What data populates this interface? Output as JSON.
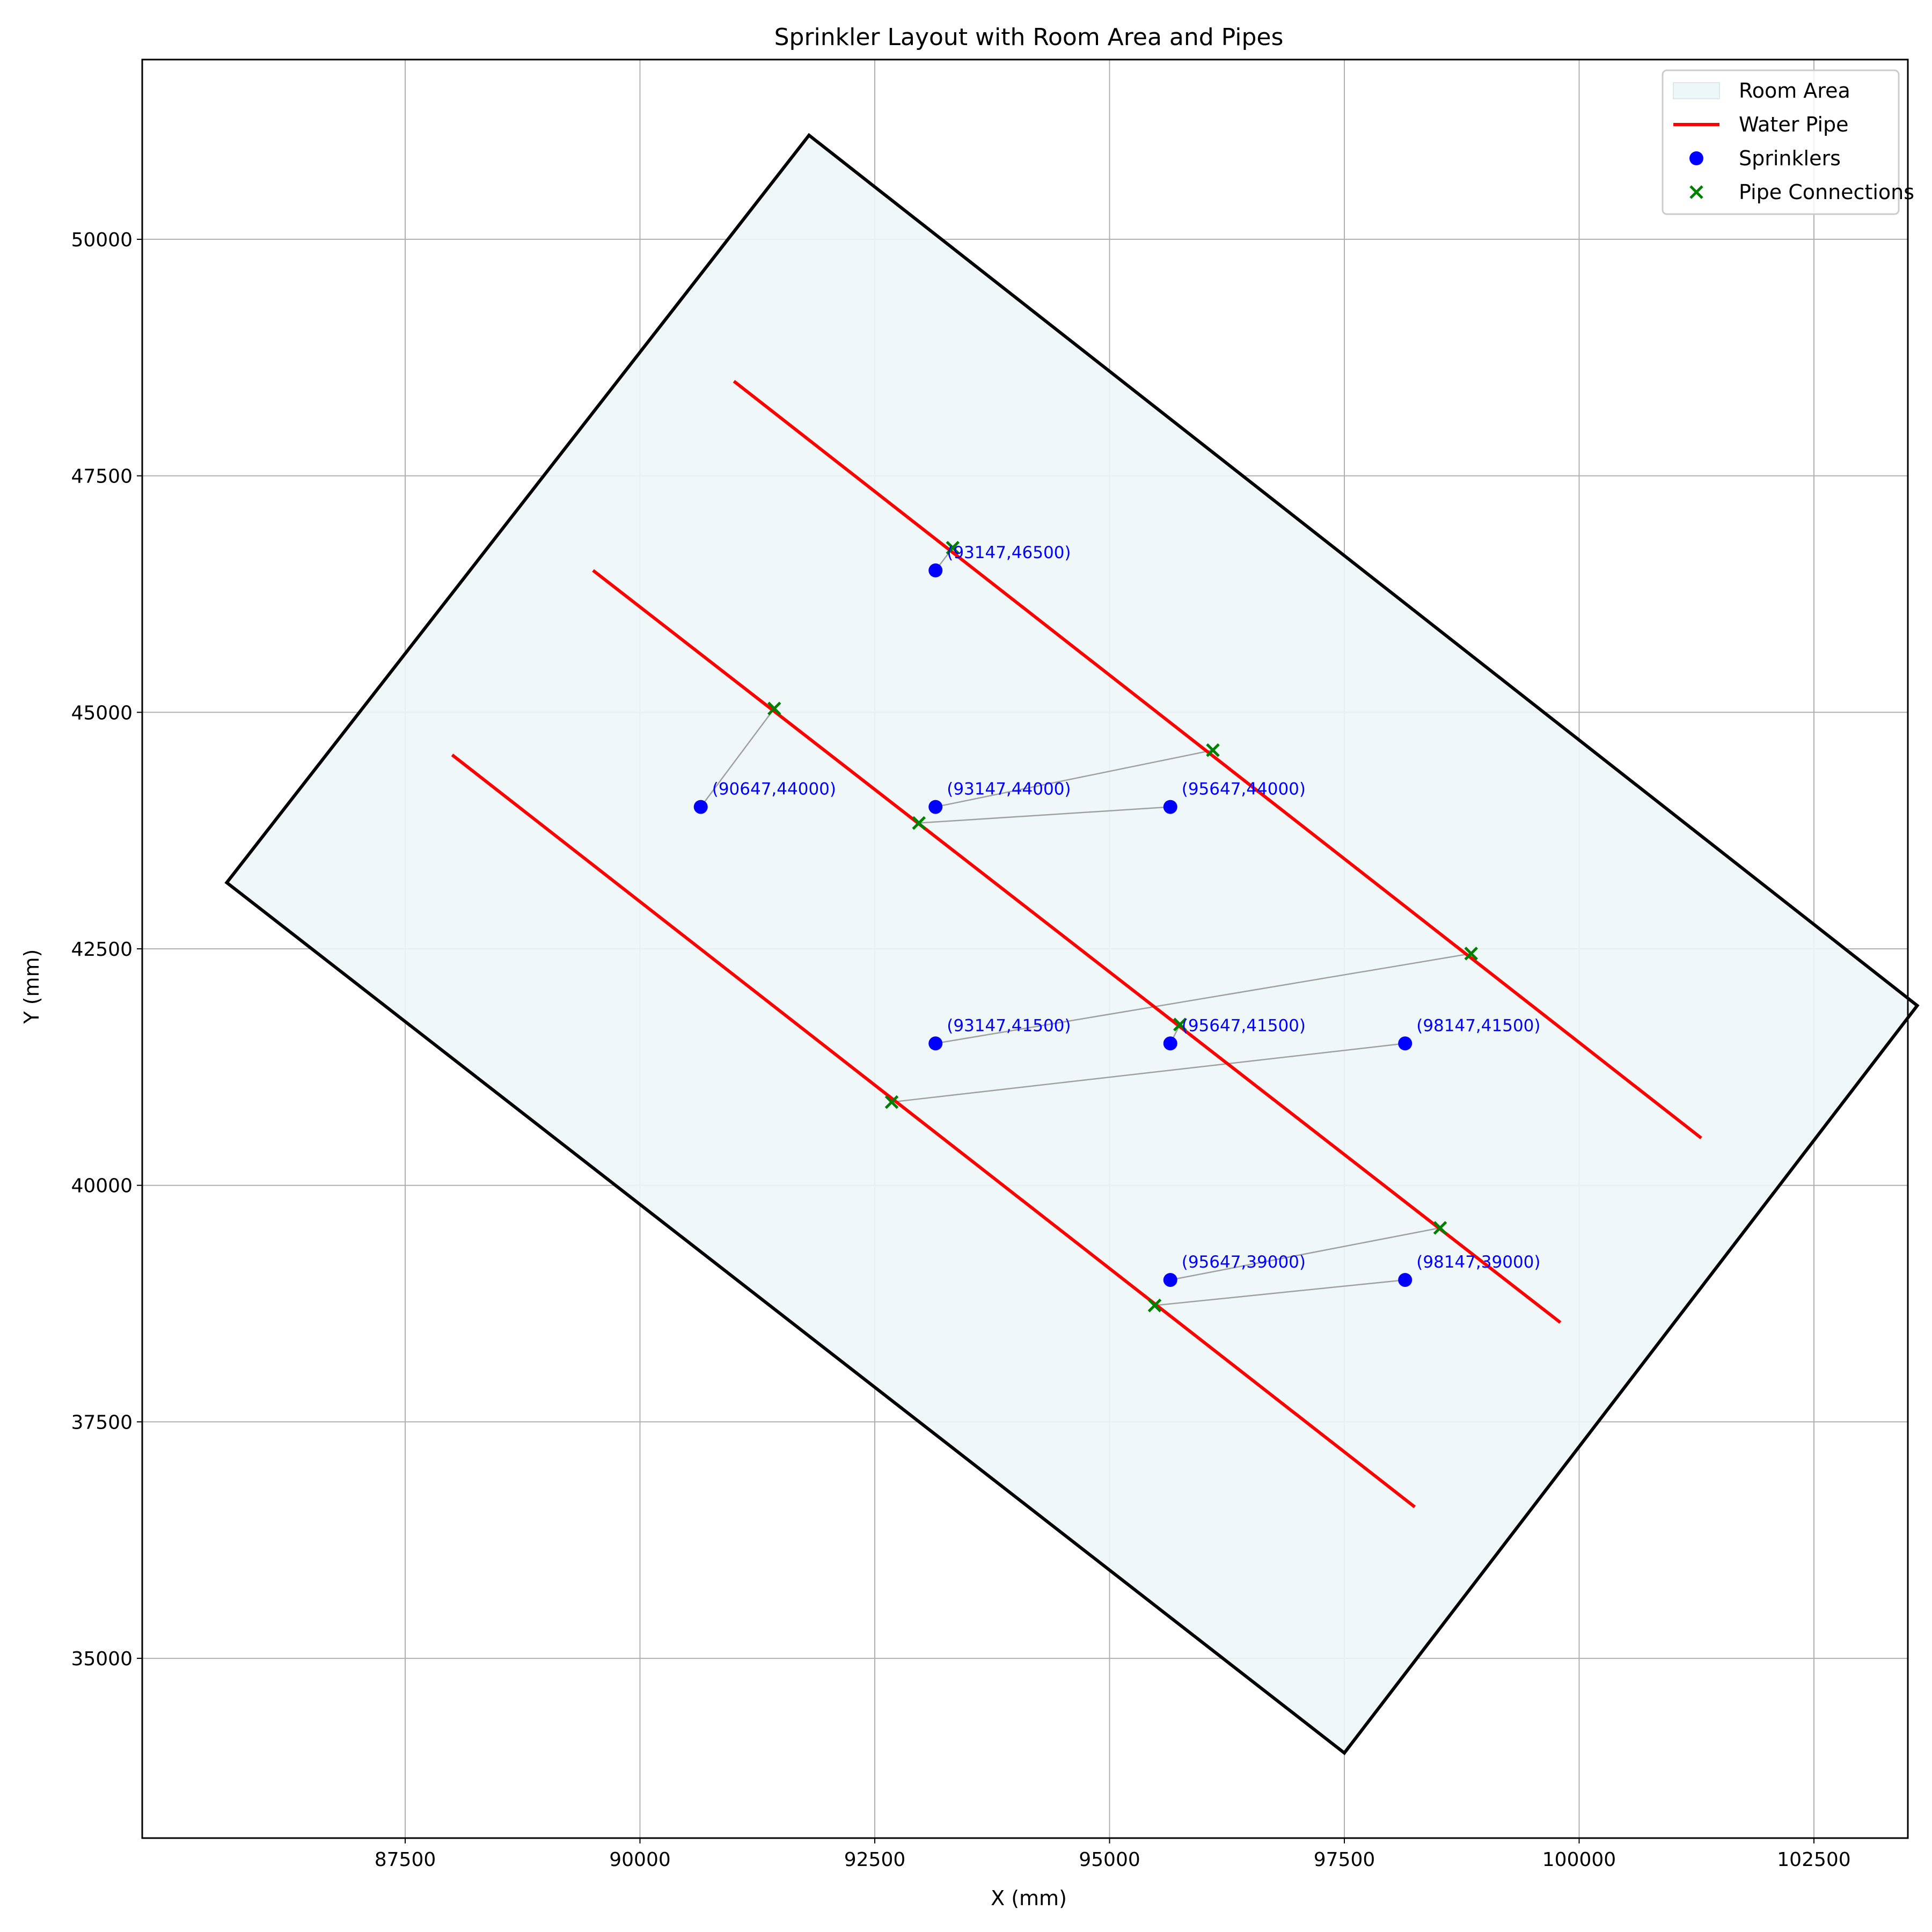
{
  "chart_data": {
    "type": "scatter",
    "title": "Sprinkler Layout with Room Area and Pipes",
    "xlabel": "X (mm)",
    "ylabel": "Y (mm)",
    "xlim": [
      84700,
      103500
    ],
    "ylim": [
      33100,
      51900
    ],
    "x_ticks": [
      87500,
      90000,
      92500,
      95000,
      97500,
      100000,
      102500
    ],
    "y_ticks": [
      35000,
      37500,
      40000,
      42500,
      45000,
      47500,
      50000
    ],
    "grid": true,
    "legend_position": "top-right",
    "legend": [
      {
        "label": "Room Area",
        "kind": "patch",
        "color": "#edf6f8"
      },
      {
        "label": "Water Pipe",
        "kind": "line",
        "color": "#ff0000"
      },
      {
        "label": "Sprinklers",
        "kind": "dot",
        "color": "#0000ff"
      },
      {
        "label": "Pipe Connections",
        "kind": "cross",
        "color": "#008000"
      }
    ],
    "room_polygon": [
      [
        91800,
        51100
      ],
      [
        103600,
        41900
      ],
      [
        97500,
        34000
      ],
      [
        85600,
        43200
      ]
    ],
    "pipes": [
      {
        "from": [
          91000,
          48500
        ],
        "to": [
          101300,
          40500
        ]
      },
      {
        "from": [
          89500,
          46500
        ],
        "to": [
          99800,
          38550
        ]
      },
      {
        "from": [
          88000,
          44550
        ],
        "to": [
          98250,
          36600
        ]
      }
    ],
    "sprinklers": [
      {
        "x": 93147,
        "y": 46500,
        "label": "(93147,46500)"
      },
      {
        "x": 90647,
        "y": 44000,
        "label": "(90647,44000)"
      },
      {
        "x": 93147,
        "y": 44000,
        "label": "(93147,44000)"
      },
      {
        "x": 95647,
        "y": 44000,
        "label": "(95647,44000)"
      },
      {
        "x": 93147,
        "y": 41500,
        "label": "(93147,41500)"
      },
      {
        "x": 95647,
        "y": 41500,
        "label": "(95647,41500)"
      },
      {
        "x": 98147,
        "y": 41500,
        "label": "(98147,41500)"
      },
      {
        "x": 95647,
        "y": 39000,
        "label": "(95647,39000)"
      },
      {
        "x": 98147,
        "y": 39000,
        "label": "(98147,39000)"
      }
    ],
    "connections": [
      [
        93330,
        46740
      ],
      [
        91430,
        45040
      ],
      [
        96100,
        44600
      ],
      [
        92970,
        43830
      ],
      [
        98850,
        42450
      ],
      [
        95750,
        41700
      ],
      [
        92680,
        40880
      ],
      [
        98520,
        39550
      ],
      [
        95480,
        38730
      ]
    ],
    "colors": {
      "room_fill": "#edf6f8",
      "room_edge": "#000000",
      "pipe": "#ff0000",
      "sprinkler": "#0000ff",
      "connection": "#008000",
      "connector_line": "#a0a0a0",
      "grid": "#b0b0b0"
    }
  }
}
